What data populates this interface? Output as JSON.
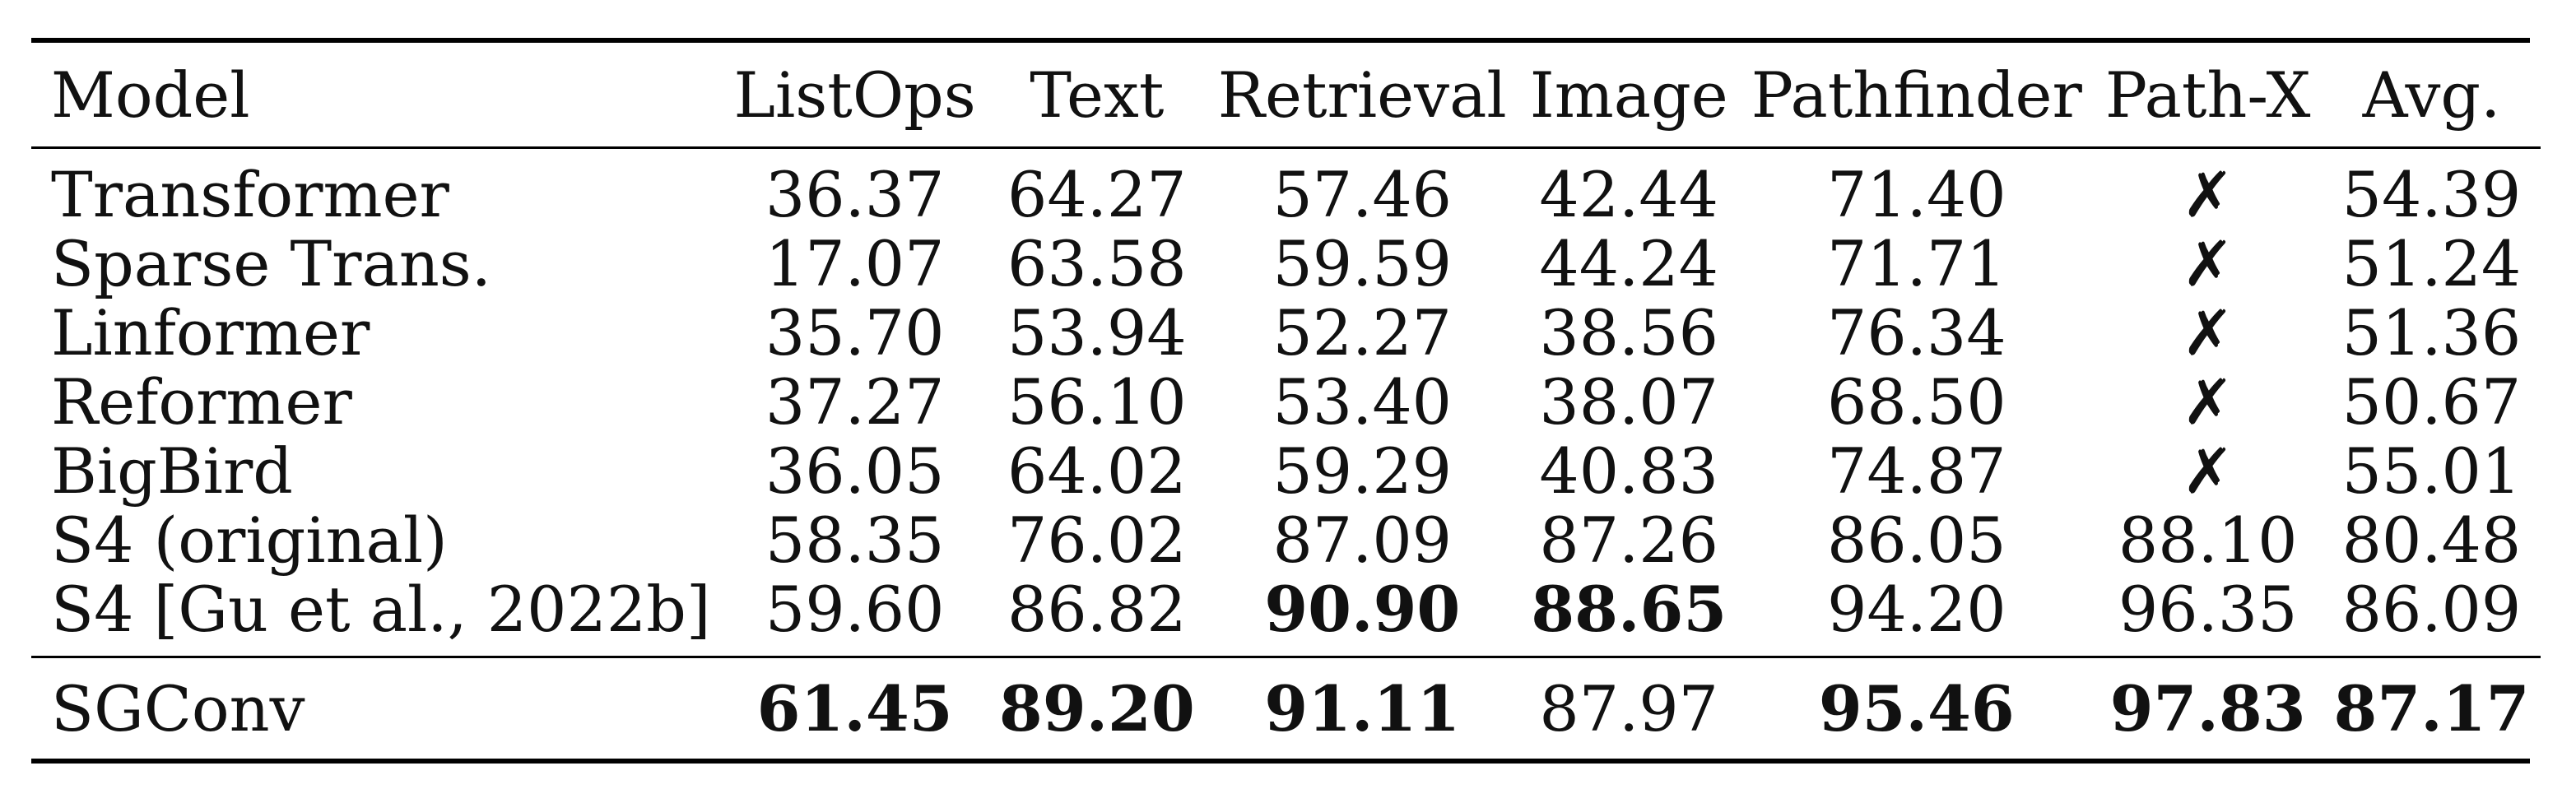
{
  "table": {
    "columns": [
      "Model",
      "ListOps",
      "Text",
      "Retrieval",
      "Image",
      "Pathfinder",
      "Path-X",
      "Avg."
    ],
    "rows": [
      {
        "model": "Transformer",
        "cells": [
          "36.37",
          "64.27",
          "57.46",
          "42.44",
          "71.40",
          "✗",
          "54.39"
        ],
        "bold": []
      },
      {
        "model": "Sparse Trans.",
        "cells": [
          "17.07",
          "63.58",
          "59.59",
          "44.24",
          "71.71",
          "✗",
          "51.24"
        ],
        "bold": []
      },
      {
        "model": "Linformer",
        "cells": [
          "35.70",
          "53.94",
          "52.27",
          "38.56",
          "76.34",
          "✗",
          "51.36"
        ],
        "bold": []
      },
      {
        "model": "Reformer",
        "cells": [
          "37.27",
          "56.10",
          "53.40",
          "38.07",
          "68.50",
          "✗",
          "50.67"
        ],
        "bold": []
      },
      {
        "model": "BigBird",
        "cells": [
          "36.05",
          "64.02",
          "59.29",
          "40.83",
          "74.87",
          "✗",
          "55.01"
        ],
        "bold": []
      },
      {
        "model": "S4 (original)",
        "cells": [
          "58.35",
          "76.02",
          "87.09",
          "87.26",
          "86.05",
          "88.10",
          "80.48"
        ],
        "bold": []
      },
      {
        "model": "S4 [Gu et al., 2022b]",
        "cells": [
          "59.60",
          "86.82",
          "90.90",
          "88.65",
          "94.20",
          "96.35",
          "86.09"
        ],
        "bold": [
          2,
          3
        ]
      }
    ],
    "footer": {
      "model": "SGConv",
      "cells": [
        "61.45",
        "89.20",
        "91.11",
        "87.97",
        "95.46",
        "97.83",
        "87.17"
      ],
      "bold": [
        0,
        1,
        2,
        4,
        5,
        6
      ]
    }
  }
}
